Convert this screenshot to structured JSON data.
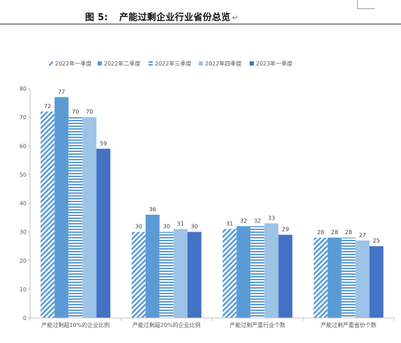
{
  "document": {
    "figure_label": "图 5:",
    "figure_title": "产能过剩企业行业省份总览",
    "paragraph_mark": "↵"
  },
  "chart_data": {
    "type": "bar",
    "categories": [
      "产能过剩超10%的企业比例",
      "产能过剩超20%的企业比例",
      "产能过剩严重行业个数",
      "产能过剩严重省份个数"
    ],
    "series": [
      {
        "name": "2022年一季度",
        "values": [
          72,
          30,
          31,
          28
        ],
        "color": "#5B9BD5",
        "pattern": "diagonal"
      },
      {
        "name": "2022年二季度",
        "values": [
          77,
          36,
          32,
          28
        ],
        "color": "#5B9BD5",
        "pattern": "solid"
      },
      {
        "name": "2022年三季度",
        "values": [
          70,
          30,
          32,
          28
        ],
        "color": "#5B9BD5",
        "pattern": "horizontal"
      },
      {
        "name": "2022年四季度",
        "values": [
          70,
          31,
          33,
          27
        ],
        "color": "#9DC3E6",
        "pattern": "solid"
      },
      {
        "name": "2023年一季度",
        "values": [
          59,
          30,
          29,
          25
        ],
        "color": "#4472C4",
        "pattern": "solid"
      }
    ],
    "ylim": [
      0,
      80
    ],
    "yticks": [
      0,
      10,
      20,
      30,
      40,
      50,
      60,
      70,
      80
    ],
    "legend_position": "top-left",
    "grid": false,
    "title": "",
    "xlabel": "",
    "ylabel": ""
  }
}
